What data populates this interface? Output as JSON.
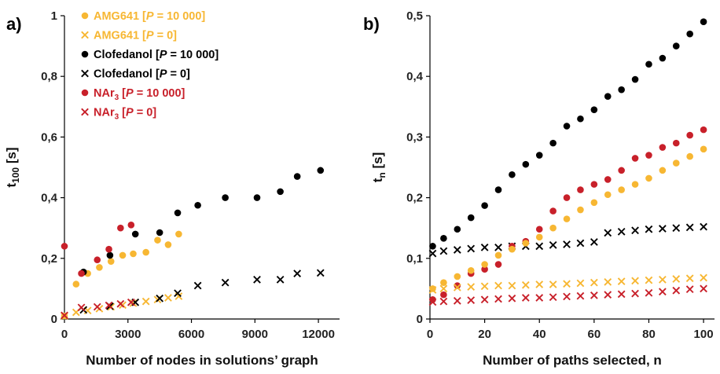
{
  "colors": {
    "amg_color": "#F7B733",
    "clof_color": "#000000",
    "nar_color": "#C8202A",
    "axis_color": "#000000"
  },
  "chart_data": [
    {
      "panel_label": "a)",
      "type": "scatter",
      "xlabel": "Number of nodes in solutions’ graph",
      "ylabel": "t",
      "ylabel_sub": "100",
      "ylabel_tail": " [s]",
      "xlim": [
        0,
        13000
      ],
      "ylim": [
        0,
        1
      ],
      "xticks": [
        0,
        3000,
        6000,
        9000,
        12000
      ],
      "yticks": [
        0,
        0.2,
        0.4,
        0.6,
        0.8,
        1
      ],
      "xtick_labels": [
        "0",
        "3000",
        "6000",
        "9000",
        "12000"
      ],
      "ytick_labels": [
        "0",
        "0,2",
        "0,4",
        "0,6",
        "0,8",
        "1"
      ],
      "legend": {
        "position": "top-left",
        "entries": [
          {
            "series": 0,
            "pre": "AMG641 [",
            "it": "P",
            "post": " = 10 000]"
          },
          {
            "series": 1,
            "pre": "AMG641 [",
            "it": "P",
            "post": " = 0]"
          },
          {
            "series": 2,
            "pre": "Clofedanol [",
            "it": "P",
            "post": " = 10 000]"
          },
          {
            "series": 3,
            "pre": "Clofedanol [",
            "it": "P",
            "post": " = 0]"
          },
          {
            "series": 4,
            "pre": "NAr",
            "sub": "3",
            "post2": " [",
            "it": "P",
            "post": " = 10 000]"
          },
          {
            "series": 5,
            "pre": "NAr",
            "sub": "3",
            "post2": " [",
            "it": "P",
            "post": " = 0]"
          }
        ]
      },
      "series": [
        {
          "color": "#F7B733",
          "marker": "dot",
          "x": [
            0,
            550,
            1100,
            1650,
            2200,
            2750,
            3250,
            3850,
            4400,
            4900,
            5400
          ],
          "y": [
            0.01,
            0.115,
            0.15,
            0.17,
            0.19,
            0.21,
            0.215,
            0.22,
            0.26,
            0.245,
            0.28
          ]
        },
        {
          "color": "#F7B733",
          "marker": "x",
          "x": [
            0,
            550,
            1100,
            1650,
            2200,
            2750,
            3250,
            3850,
            4400,
            4900,
            5400
          ],
          "y": [
            0.01,
            0.022,
            0.028,
            0.034,
            0.04,
            0.046,
            0.052,
            0.058,
            0.064,
            0.07,
            0.075
          ]
        },
        {
          "color": "#000000",
          "marker": "dot",
          "x": [
            900,
            2150,
            3350,
            4500,
            5350,
            6300,
            7600,
            9100,
            10200,
            11000,
            12100
          ],
          "y": [
            0.155,
            0.21,
            0.28,
            0.285,
            0.35,
            0.375,
            0.4,
            0.4,
            0.42,
            0.47,
            0.49
          ]
        },
        {
          "color": "#000000",
          "marker": "x",
          "x": [
            900,
            2150,
            3350,
            4500,
            5350,
            6300,
            7600,
            9100,
            10200,
            11000,
            12100
          ],
          "y": [
            0.03,
            0.042,
            0.055,
            0.068,
            0.085,
            0.11,
            0.12,
            0.13,
            0.13,
            0.15,
            0.152
          ]
        },
        {
          "color": "#C8202A",
          "marker": "dot",
          "x": [
            0,
            800,
            1550,
            2100,
            2650,
            3150
          ],
          "y": [
            0.24,
            0.15,
            0.195,
            0.23,
            0.3,
            0.31
          ]
        },
        {
          "color": "#C8202A",
          "marker": "x",
          "x": [
            0,
            800,
            1550,
            2100,
            2650,
            3150
          ],
          "y": [
            0.012,
            0.038,
            0.04,
            0.045,
            0.05,
            0.055
          ]
        }
      ]
    },
    {
      "panel_label": "b)",
      "type": "scatter",
      "xlabel": "Number of paths selected, n",
      "ylabel": "t",
      "ylabel_sub": "n",
      "ylabel_tail": " [s]",
      "xlim": [
        0,
        104
      ],
      "ylim": [
        0,
        0.5
      ],
      "xticks": [
        0,
        20,
        40,
        60,
        80,
        100
      ],
      "yticks": [
        0,
        0.1,
        0.2,
        0.3,
        0.4,
        0.5
      ],
      "xtick_labels": [
        "0",
        "20",
        "40",
        "60",
        "80",
        "100"
      ],
      "ytick_labels": [
        "0",
        "0,1",
        "0,2",
        "0,3",
        "0,4",
        "0,5"
      ],
      "series": [
        {
          "color": "#000000",
          "marker": "dot",
          "x": [
            1,
            5,
            10,
            15,
            20,
            25,
            30,
            35,
            40,
            45,
            50,
            55,
            60,
            65,
            70,
            75,
            80,
            85,
            90,
            95,
            100
          ],
          "y": [
            0.12,
            0.133,
            0.148,
            0.167,
            0.187,
            0.213,
            0.238,
            0.255,
            0.27,
            0.29,
            0.318,
            0.33,
            0.345,
            0.367,
            0.378,
            0.395,
            0.42,
            0.43,
            0.45,
            0.47,
            0.49
          ]
        },
        {
          "color": "#000000",
          "marker": "x",
          "x": [
            1,
            5,
            10,
            15,
            20,
            25,
            30,
            35,
            40,
            45,
            50,
            55,
            60,
            65,
            70,
            75,
            80,
            85,
            90,
            95,
            100
          ],
          "y": [
            0.108,
            0.112,
            0.114,
            0.116,
            0.118,
            0.118,
            0.12,
            0.12,
            0.12,
            0.122,
            0.123,
            0.125,
            0.127,
            0.142,
            0.144,
            0.146,
            0.148,
            0.149,
            0.15,
            0.151,
            0.152
          ]
        },
        {
          "color": "#C8202A",
          "marker": "dot",
          "x": [
            1,
            5,
            10,
            15,
            20,
            25,
            30,
            35,
            40,
            45,
            50,
            55,
            60,
            65,
            70,
            75,
            80,
            85,
            90,
            95,
            100
          ],
          "y": [
            0.032,
            0.04,
            0.055,
            0.075,
            0.082,
            0.09,
            0.12,
            0.128,
            0.148,
            0.178,
            0.2,
            0.213,
            0.222,
            0.23,
            0.245,
            0.265,
            0.27,
            0.283,
            0.29,
            0.303,
            0.312
          ]
        },
        {
          "color": "#F7B733",
          "marker": "dot",
          "x": [
            1,
            5,
            10,
            15,
            20,
            25,
            30,
            35,
            40,
            45,
            50,
            55,
            60,
            65,
            70,
            75,
            80,
            85,
            90,
            95,
            100
          ],
          "y": [
            0.05,
            0.06,
            0.07,
            0.08,
            0.09,
            0.105,
            0.115,
            0.125,
            0.135,
            0.15,
            0.165,
            0.18,
            0.192,
            0.205,
            0.213,
            0.222,
            0.232,
            0.245,
            0.257,
            0.268,
            0.28
          ]
        },
        {
          "color": "#F7B733",
          "marker": "x",
          "x": [
            1,
            5,
            10,
            15,
            20,
            25,
            30,
            35,
            40,
            45,
            50,
            55,
            60,
            65,
            70,
            75,
            80,
            85,
            90,
            95,
            100
          ],
          "y": [
            0.048,
            0.05,
            0.052,
            0.053,
            0.054,
            0.055,
            0.055,
            0.056,
            0.057,
            0.057,
            0.058,
            0.059,
            0.06,
            0.061,
            0.062,
            0.063,
            0.064,
            0.065,
            0.066,
            0.067,
            0.068
          ]
        },
        {
          "color": "#C8202A",
          "marker": "x",
          "x": [
            1,
            5,
            10,
            15,
            20,
            25,
            30,
            35,
            40,
            45,
            50,
            55,
            60,
            65,
            70,
            75,
            80,
            85,
            90,
            95,
            100
          ],
          "y": [
            0.028,
            0.029,
            0.03,
            0.031,
            0.032,
            0.033,
            0.034,
            0.035,
            0.035,
            0.036,
            0.037,
            0.038,
            0.039,
            0.04,
            0.041,
            0.042,
            0.043,
            0.045,
            0.047,
            0.049,
            0.05
          ]
        }
      ]
    }
  ]
}
